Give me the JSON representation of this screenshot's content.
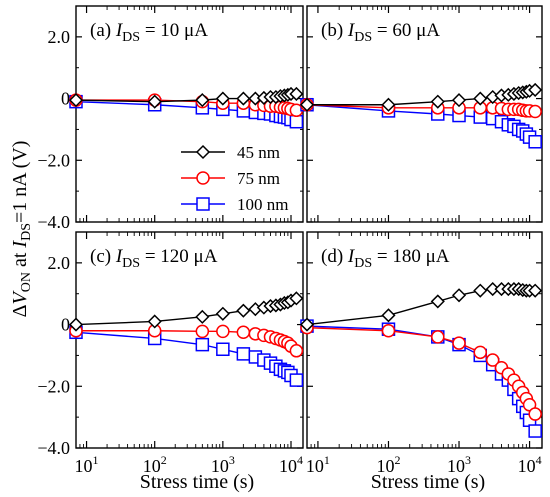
{
  "figure": {
    "ylabel": {
      "prefix": "Δ",
      "v": "V",
      "on": "ON",
      "mid": " at ",
      "i": "I",
      "ds": "DS",
      "tail": "=1 nA (V)"
    },
    "xlabel": "Stress time (s)"
  },
  "legend": [
    {
      "label": "45 nm",
      "color": "#000000",
      "marker": "diamond"
    },
    {
      "label": "75 nm",
      "color": "#ff0000",
      "marker": "circle"
    },
    {
      "label": "100 nm",
      "color": "#0000ff",
      "marker": "square"
    }
  ],
  "chart_data": [
    {
      "type": "line",
      "panel": "(a)",
      "title": {
        "prefix": "(a) ",
        "i": "I",
        "sub": "DS",
        "value": " = 10 μA"
      },
      "x_scale": "log",
      "xlim": [
        7,
        15000
      ],
      "ylim": [
        -4.0,
        3.0
      ],
      "yticks": [
        "2.0",
        "0",
        "−2.0",
        "−4.0"
      ],
      "xticks": [
        "10",
        "10",
        "10",
        "10"
      ],
      "xtick_exps": [
        "1",
        "2",
        "3",
        "4"
      ],
      "series": [
        {
          "name": "45 nm",
          "x": [
            7,
            100,
            500,
            1000,
            2000,
            3000,
            4000,
            5000,
            6000,
            7000,
            8000,
            9000,
            10000,
            12000
          ],
          "y": [
            -0.05,
            -0.1,
            -0.05,
            0.0,
            0.0,
            0.0,
            0.02,
            0.05,
            0.05,
            0.08,
            0.1,
            0.12,
            0.15,
            0.15
          ]
        },
        {
          "name": "75 nm",
          "x": [
            7,
            100,
            500,
            1000,
            2000,
            3000,
            4000,
            5000,
            6000,
            7000,
            8000,
            9000,
            10000,
            12000
          ],
          "y": [
            -0.05,
            -0.05,
            -0.1,
            -0.15,
            -0.15,
            -0.2,
            -0.22,
            -0.25,
            -0.25,
            -0.28,
            -0.3,
            -0.32,
            -0.35,
            -0.38
          ]
        },
        {
          "name": "100 nm",
          "x": [
            7,
            100,
            500,
            1000,
            2000,
            3000,
            4000,
            5000,
            6000,
            7000,
            8000,
            9000,
            10000,
            12000
          ],
          "y": [
            -0.1,
            -0.2,
            -0.3,
            -0.35,
            -0.4,
            -0.45,
            -0.48,
            -0.5,
            -0.55,
            -0.58,
            -0.6,
            -0.62,
            -0.68,
            -0.75
          ]
        }
      ]
    },
    {
      "type": "line",
      "panel": "(b)",
      "title": {
        "prefix": "(b) ",
        "i": "I",
        "sub": "DS",
        "value": " = 60 μA"
      },
      "x_scale": "log",
      "xlim": [
        7,
        15000
      ],
      "ylim": [
        -4.0,
        3.0
      ],
      "yticks": [
        "2.0",
        "0",
        "−2.0",
        "−4.0"
      ],
      "xticks": [
        "10",
        "10",
        "10",
        "10"
      ],
      "xtick_exps": [
        "1",
        "2",
        "3",
        "4"
      ],
      "series": [
        {
          "name": "45 nm",
          "x": [
            7,
            100,
            500,
            1000,
            2000,
            3000,
            4000,
            5000,
            6000,
            7000,
            8000,
            9000,
            10000,
            12000
          ],
          "y": [
            -0.2,
            -0.2,
            -0.1,
            -0.05,
            0.0,
            0.05,
            0.1,
            0.12,
            0.15,
            0.18,
            0.2,
            0.22,
            0.25,
            0.28
          ]
        },
        {
          "name": "75 nm",
          "x": [
            7,
            100,
            500,
            1000,
            2000,
            3000,
            4000,
            5000,
            6000,
            7000,
            8000,
            9000,
            10000,
            12000
          ],
          "y": [
            -0.2,
            -0.3,
            -0.3,
            -0.3,
            -0.3,
            -0.3,
            -0.32,
            -0.35,
            -0.35,
            -0.35,
            -0.38,
            -0.4,
            -0.4,
            -0.42
          ]
        },
        {
          "name": "100 nm",
          "x": [
            7,
            100,
            500,
            1000,
            2000,
            3000,
            4000,
            5000,
            6000,
            7000,
            8000,
            9000,
            10000,
            12000
          ],
          "y": [
            -0.2,
            -0.4,
            -0.5,
            -0.55,
            -0.6,
            -0.65,
            -0.75,
            -0.85,
            -0.9,
            -1.0,
            -1.05,
            -1.15,
            -1.25,
            -1.4
          ]
        }
      ]
    },
    {
      "type": "line",
      "panel": "(c)",
      "title": {
        "prefix": "(c) ",
        "i": "I",
        "sub": "DS",
        "value": " = 120 μA"
      },
      "x_scale": "log",
      "xlim": [
        7,
        15000
      ],
      "ylim": [
        -4.0,
        3.0
      ],
      "yticks": [
        "2.0",
        "0",
        "−2.0",
        "−4.0"
      ],
      "xticks": [
        "10",
        "10",
        "10",
        "10"
      ],
      "xtick_exps": [
        "1",
        "2",
        "3",
        "4"
      ],
      "series": [
        {
          "name": "45 nm",
          "x": [
            7,
            100,
            500,
            1000,
            2000,
            3000,
            4000,
            5000,
            6000,
            7000,
            8000,
            9000,
            10000,
            12000
          ],
          "y": [
            0.0,
            0.1,
            0.25,
            0.35,
            0.45,
            0.5,
            0.55,
            0.6,
            0.62,
            0.65,
            0.7,
            0.72,
            0.78,
            0.85
          ]
        },
        {
          "name": "75 nm",
          "x": [
            7,
            100,
            500,
            1000,
            2000,
            3000,
            4000,
            5000,
            6000,
            7000,
            8000,
            9000,
            10000,
            12000
          ],
          "y": [
            -0.2,
            -0.2,
            -0.22,
            -0.22,
            -0.25,
            -0.3,
            -0.35,
            -0.4,
            -0.45,
            -0.5,
            -0.55,
            -0.6,
            -0.7,
            -0.85
          ]
        },
        {
          "name": "100 nm",
          "x": [
            7,
            100,
            500,
            1000,
            2000,
            3000,
            4000,
            5000,
            6000,
            7000,
            8000,
            9000,
            10000,
            12000
          ],
          "y": [
            -0.25,
            -0.45,
            -0.65,
            -0.8,
            -0.95,
            -1.05,
            -1.15,
            -1.25,
            -1.35,
            -1.45,
            -1.5,
            -1.55,
            -1.65,
            -1.8
          ]
        }
      ]
    },
    {
      "type": "line",
      "panel": "(d)",
      "title": {
        "prefix": "(d) ",
        "i": "I",
        "sub": "DS",
        "value": " = 180 μA"
      },
      "x_scale": "log",
      "xlim": [
        7,
        15000
      ],
      "ylim": [
        -4.0,
        3.0
      ],
      "yticks": [
        "2.0",
        "0",
        "−2.0",
        "−4.0"
      ],
      "xticks": [
        "10",
        "10",
        "10",
        "10"
      ],
      "xtick_exps": [
        "1",
        "2",
        "3",
        "4"
      ],
      "series": [
        {
          "name": "45 nm",
          "x": [
            7,
            100,
            500,
            1000,
            2000,
            3000,
            4000,
            5000,
            6000,
            7000,
            8000,
            9000,
            10000,
            12000
          ],
          "y": [
            0.0,
            0.3,
            0.75,
            0.95,
            1.1,
            1.15,
            1.15,
            1.15,
            1.15,
            1.15,
            1.12,
            1.1,
            1.1,
            1.1
          ]
        },
        {
          "name": "75 nm",
          "x": [
            7,
            100,
            500,
            1000,
            2000,
            3000,
            4000,
            5000,
            6000,
            7000,
            8000,
            9000,
            10000,
            12000
          ],
          "y": [
            -0.1,
            -0.2,
            -0.4,
            -0.6,
            -0.9,
            -1.15,
            -1.4,
            -1.6,
            -1.8,
            -2.0,
            -2.2,
            -2.4,
            -2.6,
            -2.9
          ]
        },
        {
          "name": "100 nm",
          "x": [
            7,
            100,
            500,
            1000,
            2000,
            3000,
            4000,
            5000,
            6000,
            7000,
            8000,
            9000,
            10000,
            12000
          ],
          "y": [
            -0.05,
            -0.15,
            -0.4,
            -0.65,
            -1.0,
            -1.3,
            -1.6,
            -1.8,
            -2.1,
            -2.4,
            -2.65,
            -2.85,
            -3.1,
            -3.45
          ]
        }
      ]
    }
  ]
}
